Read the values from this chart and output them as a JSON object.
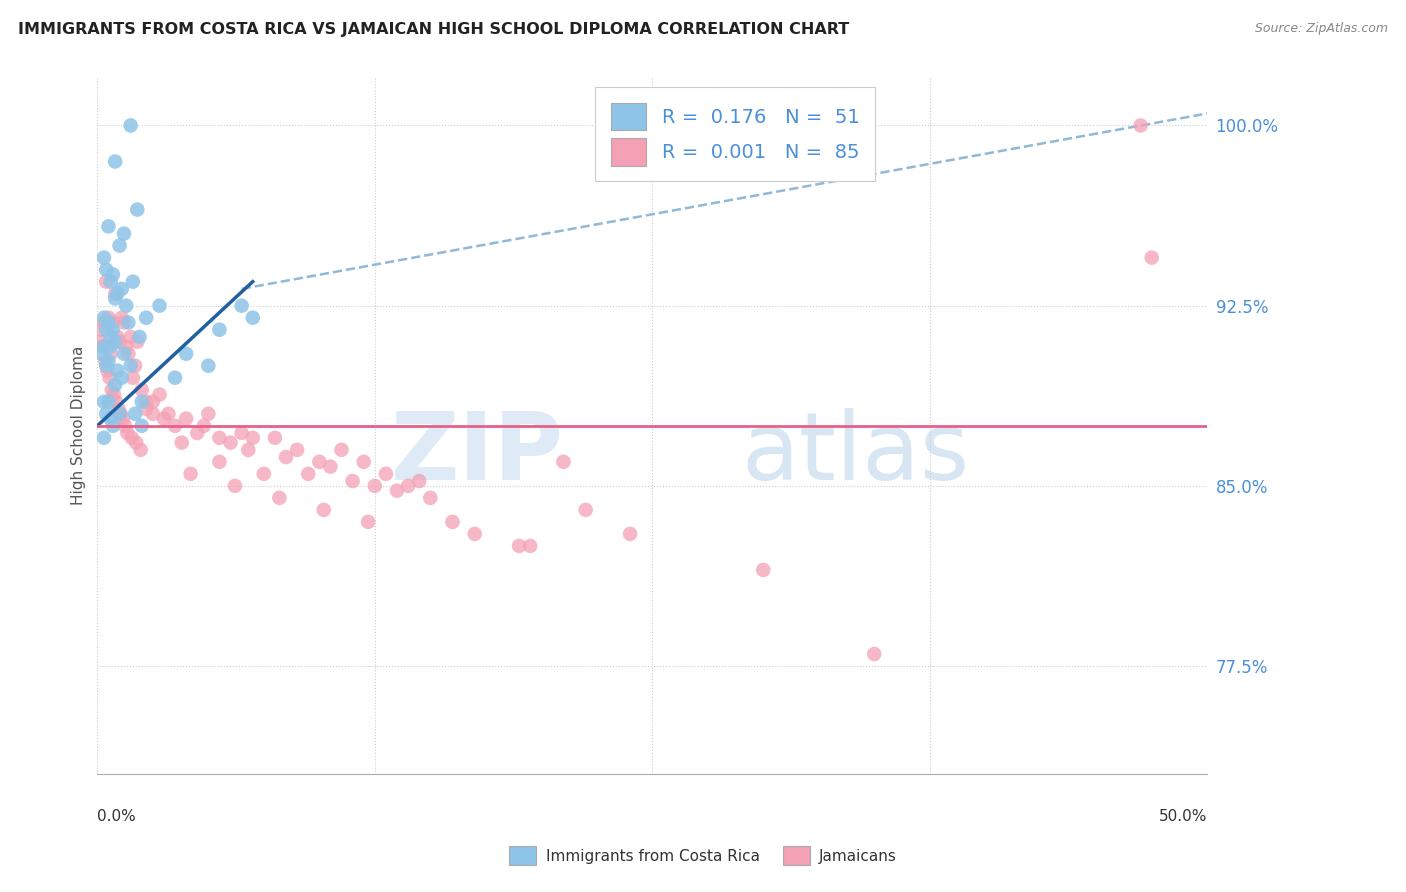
{
  "title": "IMMIGRANTS FROM COSTA RICA VS JAMAICAN HIGH SCHOOL DIPLOMA CORRELATION CHART",
  "source": "Source: ZipAtlas.com",
  "ylabel": "High School Diploma",
  "right_yticks": [
    77.5,
    85.0,
    92.5,
    100.0
  ],
  "right_yticklabels": [
    "77.5%",
    "85.0%",
    "92.5%",
    "100.0%"
  ],
  "legend_blue_r_val": "0.176",
  "legend_blue_n_val": "51",
  "legend_pink_r_val": "0.001",
  "legend_pink_n_val": "85",
  "blue_color": "#8ec4e8",
  "pink_color": "#f4a0b5",
  "blue_line_color": "#2060a0",
  "pink_line_color": "#e8608a",
  "dashed_line_color": "#90b8d8",
  "xlim": [
    0,
    50
  ],
  "ylim": [
    73,
    102
  ],
  "blue_dots_x": [
    1.5,
    0.8,
    1.8,
    1.2,
    0.5,
    0.3,
    0.4,
    0.6,
    1.0,
    0.7,
    1.1,
    0.9,
    1.3,
    0.8,
    2.8,
    0.3,
    0.4,
    0.5,
    0.7,
    0.6,
    1.4,
    0.8,
    1.9,
    2.2,
    0.3,
    0.2,
    0.4,
    0.5,
    0.6,
    1.2,
    1.5,
    0.9,
    0.8,
    1.1,
    0.3,
    1.7,
    0.5,
    0.4,
    0.7,
    0.6,
    1.0,
    2.0,
    0.3,
    5.5,
    4.0,
    3.5,
    7.0,
    5.0,
    2.0,
    1.6,
    6.5
  ],
  "blue_dots_y": [
    100.0,
    98.5,
    96.5,
    95.5,
    95.8,
    94.5,
    94.0,
    93.5,
    95.0,
    93.8,
    93.2,
    93.0,
    92.5,
    92.8,
    92.5,
    92.0,
    91.5,
    91.8,
    91.5,
    91.2,
    91.8,
    91.0,
    91.2,
    92.0,
    90.8,
    90.5,
    90.0,
    90.2,
    90.8,
    90.5,
    90.0,
    89.8,
    89.2,
    89.5,
    88.5,
    88.0,
    88.5,
    88.0,
    87.5,
    87.8,
    88.0,
    87.5,
    87.0,
    91.5,
    90.5,
    89.5,
    92.0,
    90.0,
    88.5,
    93.5,
    92.5
  ],
  "pink_dots_x": [
    0.2,
    0.3,
    0.4,
    0.5,
    0.6,
    0.7,
    0.8,
    0.9,
    1.0,
    1.1,
    1.2,
    1.3,
    1.4,
    1.5,
    1.6,
    1.7,
    1.8,
    2.0,
    2.2,
    2.5,
    2.8,
    3.0,
    3.5,
    4.0,
    4.5,
    5.0,
    5.5,
    6.0,
    6.5,
    7.0,
    8.0,
    9.0,
    10.0,
    11.0,
    12.0,
    13.0,
    14.0,
    15.0,
    17.0,
    19.0,
    0.15,
    0.25,
    0.35,
    0.45,
    0.55,
    0.65,
    0.75,
    0.85,
    0.95,
    1.05,
    1.15,
    1.25,
    1.35,
    1.55,
    1.75,
    1.95,
    2.5,
    3.2,
    4.8,
    6.8,
    9.5,
    12.5,
    14.5,
    10.5,
    8.5,
    16.0,
    22.0,
    24.0,
    30.0,
    5.5,
    4.2,
    6.2,
    8.2,
    10.2,
    12.2,
    2.2,
    3.8,
    7.5,
    11.5,
    13.5,
    47.0,
    47.5,
    35.0,
    21.0,
    19.5
  ],
  "pink_dots_y": [
    91.5,
    91.8,
    93.5,
    92.0,
    90.5,
    91.8,
    93.0,
    91.2,
    91.0,
    92.0,
    91.8,
    90.8,
    90.5,
    91.2,
    89.5,
    90.0,
    91.0,
    89.0,
    88.5,
    88.0,
    88.8,
    87.8,
    87.5,
    87.8,
    87.2,
    88.0,
    87.0,
    86.8,
    87.2,
    87.0,
    87.0,
    86.5,
    86.0,
    86.5,
    86.0,
    85.5,
    85.0,
    84.5,
    83.0,
    82.5,
    91.0,
    90.8,
    90.2,
    89.8,
    89.5,
    89.0,
    88.8,
    88.5,
    88.2,
    88.0,
    87.8,
    87.5,
    87.2,
    87.0,
    86.8,
    86.5,
    88.5,
    88.0,
    87.5,
    86.5,
    85.5,
    85.0,
    85.2,
    85.8,
    86.2,
    83.5,
    84.0,
    83.0,
    81.5,
    86.0,
    85.5,
    85.0,
    84.5,
    84.0,
    83.5,
    88.2,
    86.8,
    85.5,
    85.2,
    84.8,
    100.0,
    94.5,
    78.0,
    86.0,
    82.5
  ],
  "blue_trend_x": [
    0,
    7
  ],
  "blue_trend_y": [
    87.5,
    93.5
  ],
  "dashed_trend_x": [
    6.5,
    50
  ],
  "dashed_trend_y": [
    93.2,
    100.5
  ],
  "pink_trend_y_val": 87.5
}
